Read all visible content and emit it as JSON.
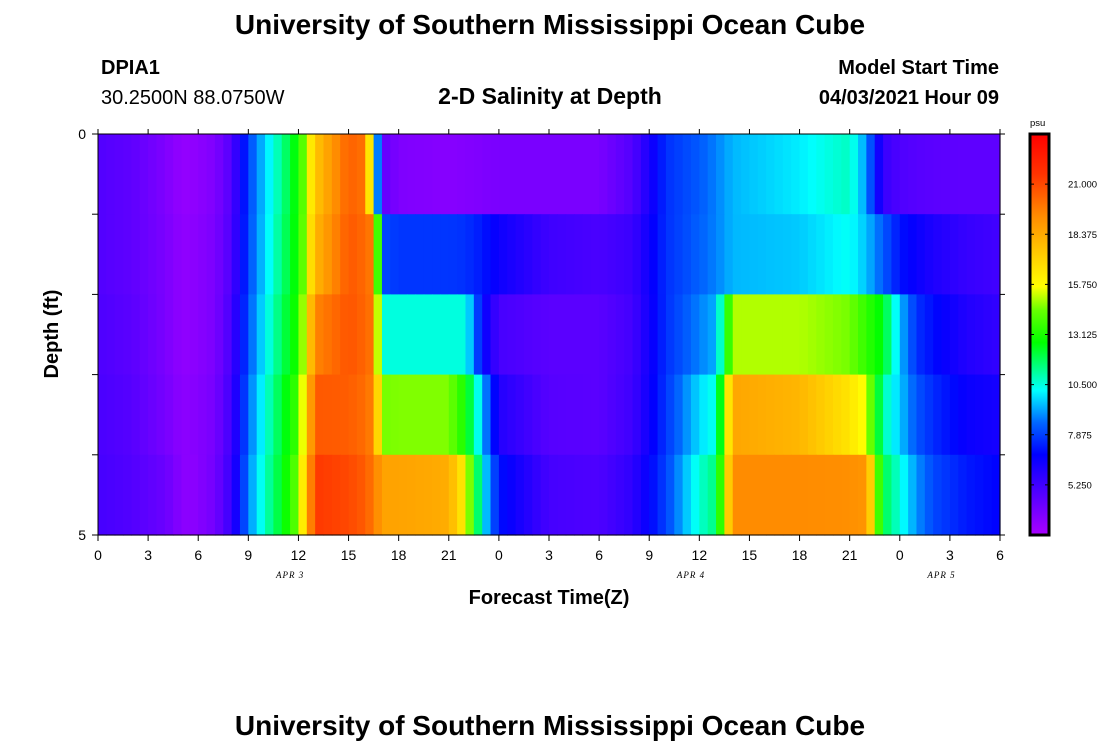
{
  "page": {
    "title_top": "University of Southern Mississippi Ocean Cube",
    "title_bottom": "University of Southern Mississippi Ocean Cube",
    "station": "DPIA1",
    "coords": "30.2500N  88.0750W",
    "model_label": "Model Start Time",
    "model_time": "04/03/2021 Hour 09"
  },
  "chart_data": {
    "type": "heatmap",
    "title": "2-D Salinity at Depth",
    "xlabel": "Forecast Time(Z)",
    "ylabel": "Depth (ft)",
    "ylim": [
      0,
      5
    ],
    "y_ticks": [
      "0",
      "5"
    ],
    "x_ticks": [
      "0",
      "3",
      "6",
      "9",
      "12",
      "15",
      "18",
      "21",
      "0",
      "3",
      "6",
      "9",
      "12",
      "15",
      "18",
      "21",
      "0",
      "3",
      "6"
    ],
    "date_labels": [
      {
        "text": "APR 3",
        "hour": 11.5
      },
      {
        "text": "APR 4",
        "hour": 35.5
      },
      {
        "text": "APR 5",
        "hour": 50.5
      }
    ],
    "x_range_hours": [
      0,
      54
    ],
    "depth_rows": [
      "0-1",
      "1-2",
      "2-3",
      "3-4",
      "4-5"
    ],
    "colorbar": {
      "unit": "psu",
      "min": 2.625,
      "max": 23.625,
      "ticks": [
        "21.000",
        "18.375",
        "15.750",
        "13.125",
        "10.500",
        "7.875",
        "5.250"
      ]
    },
    "keyframes_hours": [
      0,
      2,
      4,
      5,
      5.5,
      7,
      8,
      9,
      10,
      11,
      12,
      13,
      15,
      16,
      16.5,
      17,
      18,
      21,
      22,
      23,
      24,
      27,
      30,
      32,
      34,
      36,
      37,
      38,
      42,
      45,
      46,
      47,
      48,
      49,
      50,
      52,
      54
    ],
    "salinity": [
      [
        4.8,
        4.5,
        3.7,
        3.2,
        3.2,
        3.7,
        4.8,
        7.9,
        9.7,
        11.3,
        13.0,
        17.5,
        20.4,
        20.0,
        13.0,
        4.5,
        3.7,
        3.5,
        3.6,
        3.7,
        3.8,
        3.8,
        3.8,
        4.8,
        7.6,
        8.3,
        8.8,
        9.4,
        10.0,
        10.8,
        9.0,
        5.5,
        4.9,
        4.7,
        4.6,
        4.5,
        4.5
      ],
      [
        4.8,
        4.5,
        3.8,
        3.3,
        3.3,
        3.8,
        4.9,
        8.0,
        9.8,
        11.5,
        13.0,
        18.0,
        20.6,
        20.2,
        19.6,
        8.0,
        7.7,
        7.7,
        7.6,
        7.2,
        6.5,
        5.3,
        5.0,
        5.4,
        7.6,
        8.4,
        8.8,
        9.4,
        9.6,
        10.3,
        9.5,
        8.3,
        7.1,
        6.6,
        6.1,
        5.5,
        5.2
      ],
      [
        4.9,
        4.6,
        3.8,
        3.3,
        3.3,
        3.8,
        5.1,
        8.2,
        10.1,
        11.8,
        13.2,
        19.5,
        20.7,
        20.3,
        19.8,
        10.5,
        10.5,
        10.5,
        10.5,
        6.9,
        5.1,
        4.6,
        4.6,
        5.2,
        7.6,
        8.8,
        9.3,
        15.0,
        15.0,
        14.5,
        13.5,
        12.5,
        9.5,
        7.6,
        7.0,
        6.0,
        5.6
      ],
      [
        5.0,
        4.7,
        3.9,
        3.4,
        3.4,
        3.9,
        5.3,
        8.5,
        10.5,
        12.2,
        13.8,
        20.6,
        20.5,
        20.1,
        19.5,
        14.5,
        14.6,
        14.6,
        13.0,
        9.5,
        6.0,
        4.7,
        4.6,
        5.3,
        7.7,
        9.8,
        10.5,
        18.5,
        18.0,
        16.5,
        15.5,
        11.0,
        9.6,
        8.2,
        7.5,
        6.6,
        6.3
      ],
      [
        5.1,
        4.8,
        4.2,
        3.5,
        3.3,
        4.0,
        5.5,
        8.8,
        10.8,
        12.4,
        14.5,
        21.4,
        21.0,
        20.5,
        19.8,
        18.6,
        18.6,
        18.3,
        16.0,
        10.2,
        7.1,
        5.1,
        4.9,
        5.7,
        7.9,
        10.6,
        11.5,
        19.3,
        19.3,
        19.2,
        19.0,
        12.0,
        10.5,
        9.0,
        8.0,
        7.2,
        6.8
      ]
    ]
  }
}
